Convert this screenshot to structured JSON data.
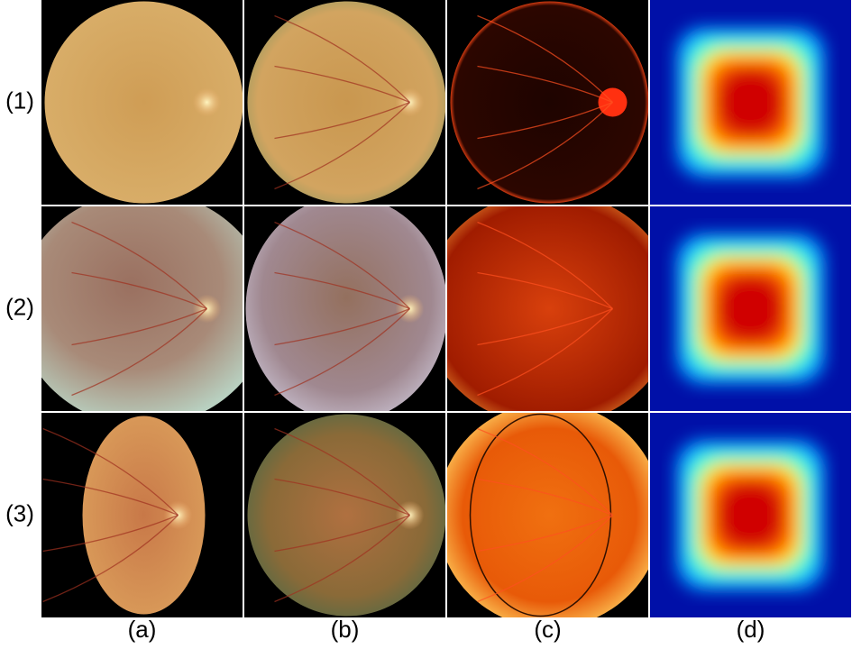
{
  "figure": {
    "row_labels": [
      "(1)",
      "(2)",
      "(3)"
    ],
    "column_labels": [
      "(a)",
      "(b)",
      "(c)",
      "(d)"
    ]
  }
}
